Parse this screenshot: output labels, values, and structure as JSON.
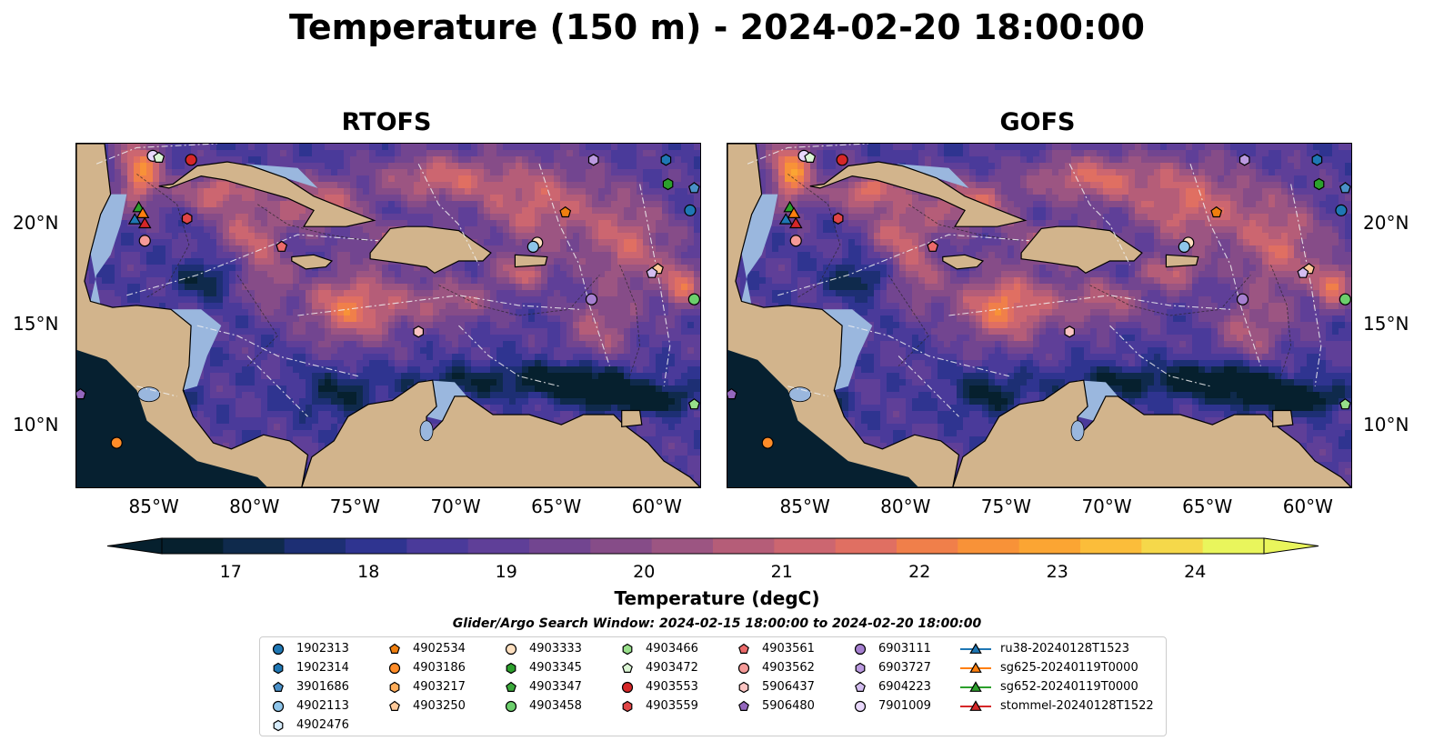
{
  "title": "Temperature (150 m) - 2024-02-20 18:00:00",
  "panels": [
    {
      "title": "RTOFS"
    },
    {
      "title": "GOFS"
    }
  ],
  "lon_ticks": [
    "85°W",
    "80°W",
    "75°W",
    "70°W",
    "65°W",
    "60°W"
  ],
  "lat_ticks": [
    "20°N",
    "15°N",
    "10°N"
  ],
  "colorbar": {
    "label": "Temperature (degC)",
    "ticks": [
      "17",
      "18",
      "19",
      "20",
      "21",
      "22",
      "23",
      "24"
    ],
    "range": [
      16.5,
      24.5
    ],
    "colors": [
      "#06202e",
      "#0f2a4c",
      "#1d2f74",
      "#2f3490",
      "#4a3a9a",
      "#5f3f98",
      "#724590",
      "#864c88",
      "#9c5582",
      "#b55d78",
      "#cc6670",
      "#e06f62",
      "#f07f4a",
      "#f89238",
      "#fba533",
      "#fbbd3a",
      "#f5d84a",
      "#e9f55c"
    ]
  },
  "search_window": "Glider/Argo Search Window: 2024-02-15 18:00:00 to 2024-02-20 18:00:00",
  "legend": [
    {
      "label": "1902313",
      "shape": "circle",
      "color": "#1f77b4"
    },
    {
      "label": "1902314",
      "shape": "hexagon",
      "color": "#1f77b4"
    },
    {
      "label": "3901686",
      "shape": "pentagon",
      "color": "#4a90c8"
    },
    {
      "label": "4902113",
      "shape": "circle",
      "color": "#8ec5ea"
    },
    {
      "label": "4902476",
      "shape": "hexagon",
      "color": "#d6ebfa"
    },
    {
      "label": "4902534",
      "shape": "pentagon",
      "color": "#f07f0e"
    },
    {
      "label": "4903186",
      "shape": "circle",
      "color": "#ff8c28"
    },
    {
      "label": "4903217",
      "shape": "hexagon",
      "color": "#ffad5a"
    },
    {
      "label": "4903250",
      "shape": "pentagon",
      "color": "#ffc999"
    },
    {
      "label": "4903333",
      "shape": "circle",
      "color": "#ffe0c0"
    },
    {
      "label": "4903345",
      "shape": "hexagon",
      "color": "#2ca02c"
    },
    {
      "label": "4903347",
      "shape": "pentagon",
      "color": "#3aa83a"
    },
    {
      "label": "4903458",
      "shape": "circle",
      "color": "#6ccf6c"
    },
    {
      "label": "4903466",
      "shape": "hexagon",
      "color": "#98df8a"
    },
    {
      "label": "4903472",
      "shape": "pentagon",
      "color": "#dbf5d4"
    },
    {
      "label": "4903553",
      "shape": "circle",
      "color": "#d62728"
    },
    {
      "label": "4903559",
      "shape": "hexagon",
      "color": "#e04546"
    },
    {
      "label": "4903561",
      "shape": "pentagon",
      "color": "#ec6a6a"
    },
    {
      "label": "4903562",
      "shape": "circle",
      "color": "#f59a98"
    },
    {
      "label": "5906437",
      "shape": "hexagon",
      "color": "#fbc4c2"
    },
    {
      "label": "5906480",
      "shape": "pentagon",
      "color": "#9467bd"
    },
    {
      "label": "6903111",
      "shape": "circle",
      "color": "#a57fd0"
    },
    {
      "label": "6903727",
      "shape": "hexagon",
      "color": "#bb9ae0"
    },
    {
      "label": "6904223",
      "shape": "pentagon",
      "color": "#d3bdf0"
    },
    {
      "label": "7901009",
      "shape": "circle",
      "color": "#e9d8fb"
    },
    {
      "label": "ru38-20240128T1523",
      "shape": "triangle",
      "color": "#1f77b4"
    },
    {
      "label": "sg625-20240119T0000",
      "shape": "triangle",
      "color": "#ff7f0e"
    },
    {
      "label": "sg652-20240119T0000",
      "shape": "triangle",
      "color": "#2ca02c"
    },
    {
      "label": "stommel-20240128T1522",
      "shape": "triangle",
      "color": "#d62728"
    }
  ],
  "markers": [
    {
      "lon": -85.2,
      "lat": 23.4,
      "shape": "circle",
      "color": "#e9d8fb"
    },
    {
      "lon": -84.9,
      "lat": 23.3,
      "shape": "pentagon",
      "color": "#dbf5d4"
    },
    {
      "lon": -83.3,
      "lat": 23.2,
      "shape": "circle",
      "color": "#d62728"
    },
    {
      "lon": -83.5,
      "lat": 20.3,
      "shape": "hexagon",
      "color": "#e04546"
    },
    {
      "lon": -85.6,
      "lat": 19.2,
      "shape": "circle",
      "color": "#f59a98"
    },
    {
      "lon": -78.8,
      "lat": 18.9,
      "shape": "pentagon",
      "color": "#ec6a6a"
    },
    {
      "lon": -63.3,
      "lat": 23.2,
      "shape": "hexagon",
      "color": "#bb9ae0"
    },
    {
      "lon": -59.7,
      "lat": 23.2,
      "shape": "hexagon",
      "color": "#1f77b4"
    },
    {
      "lon": -59.6,
      "lat": 22.0,
      "shape": "hexagon",
      "color": "#2ca02c"
    },
    {
      "lon": -58.3,
      "lat": 21.8,
      "shape": "pentagon",
      "color": "#4a90c8"
    },
    {
      "lon": -58.5,
      "lat": 20.7,
      "shape": "circle",
      "color": "#1f77b4"
    },
    {
      "lon": -64.7,
      "lat": 20.6,
      "shape": "pentagon",
      "color": "#f07f0e"
    },
    {
      "lon": -66.1,
      "lat": 19.1,
      "shape": "circle",
      "color": "#ffe0c0"
    },
    {
      "lon": -66.3,
      "lat": 18.9,
      "shape": "circle",
      "color": "#8ec5ea"
    },
    {
      "lon": -60.1,
      "lat": 17.8,
      "shape": "pentagon",
      "color": "#ffc999"
    },
    {
      "lon": -60.4,
      "lat": 17.6,
      "shape": "pentagon",
      "color": "#d3bdf0"
    },
    {
      "lon": -63.4,
      "lat": 16.3,
      "shape": "circle",
      "color": "#a57fd0"
    },
    {
      "lon": -58.3,
      "lat": 16.3,
      "shape": "circle",
      "color": "#6ccf6c"
    },
    {
      "lon": -72.0,
      "lat": 14.7,
      "shape": "hexagon",
      "color": "#fbc4c2"
    },
    {
      "lon": -88.8,
      "lat": 11.6,
      "shape": "pentagon",
      "color": "#9467bd"
    },
    {
      "lon": -87.0,
      "lat": 9.2,
      "shape": "circle",
      "color": "#ff8c28"
    },
    {
      "lon": -58.3,
      "lat": 11.1,
      "shape": "pentagon",
      "color": "#98df8a"
    },
    {
      "lon": -85.9,
      "lat": 20.8,
      "shape": "triangle",
      "color": "#2ca02c"
    },
    {
      "lon": -86.1,
      "lat": 20.2,
      "shape": "triangle",
      "color": "#1f77b4"
    },
    {
      "lon": -85.7,
      "lat": 20.5,
      "shape": "triangle",
      "color": "#ff7f0e"
    },
    {
      "lon": -85.6,
      "lat": 20.0,
      "shape": "triangle",
      "color": "#d62728"
    }
  ]
}
